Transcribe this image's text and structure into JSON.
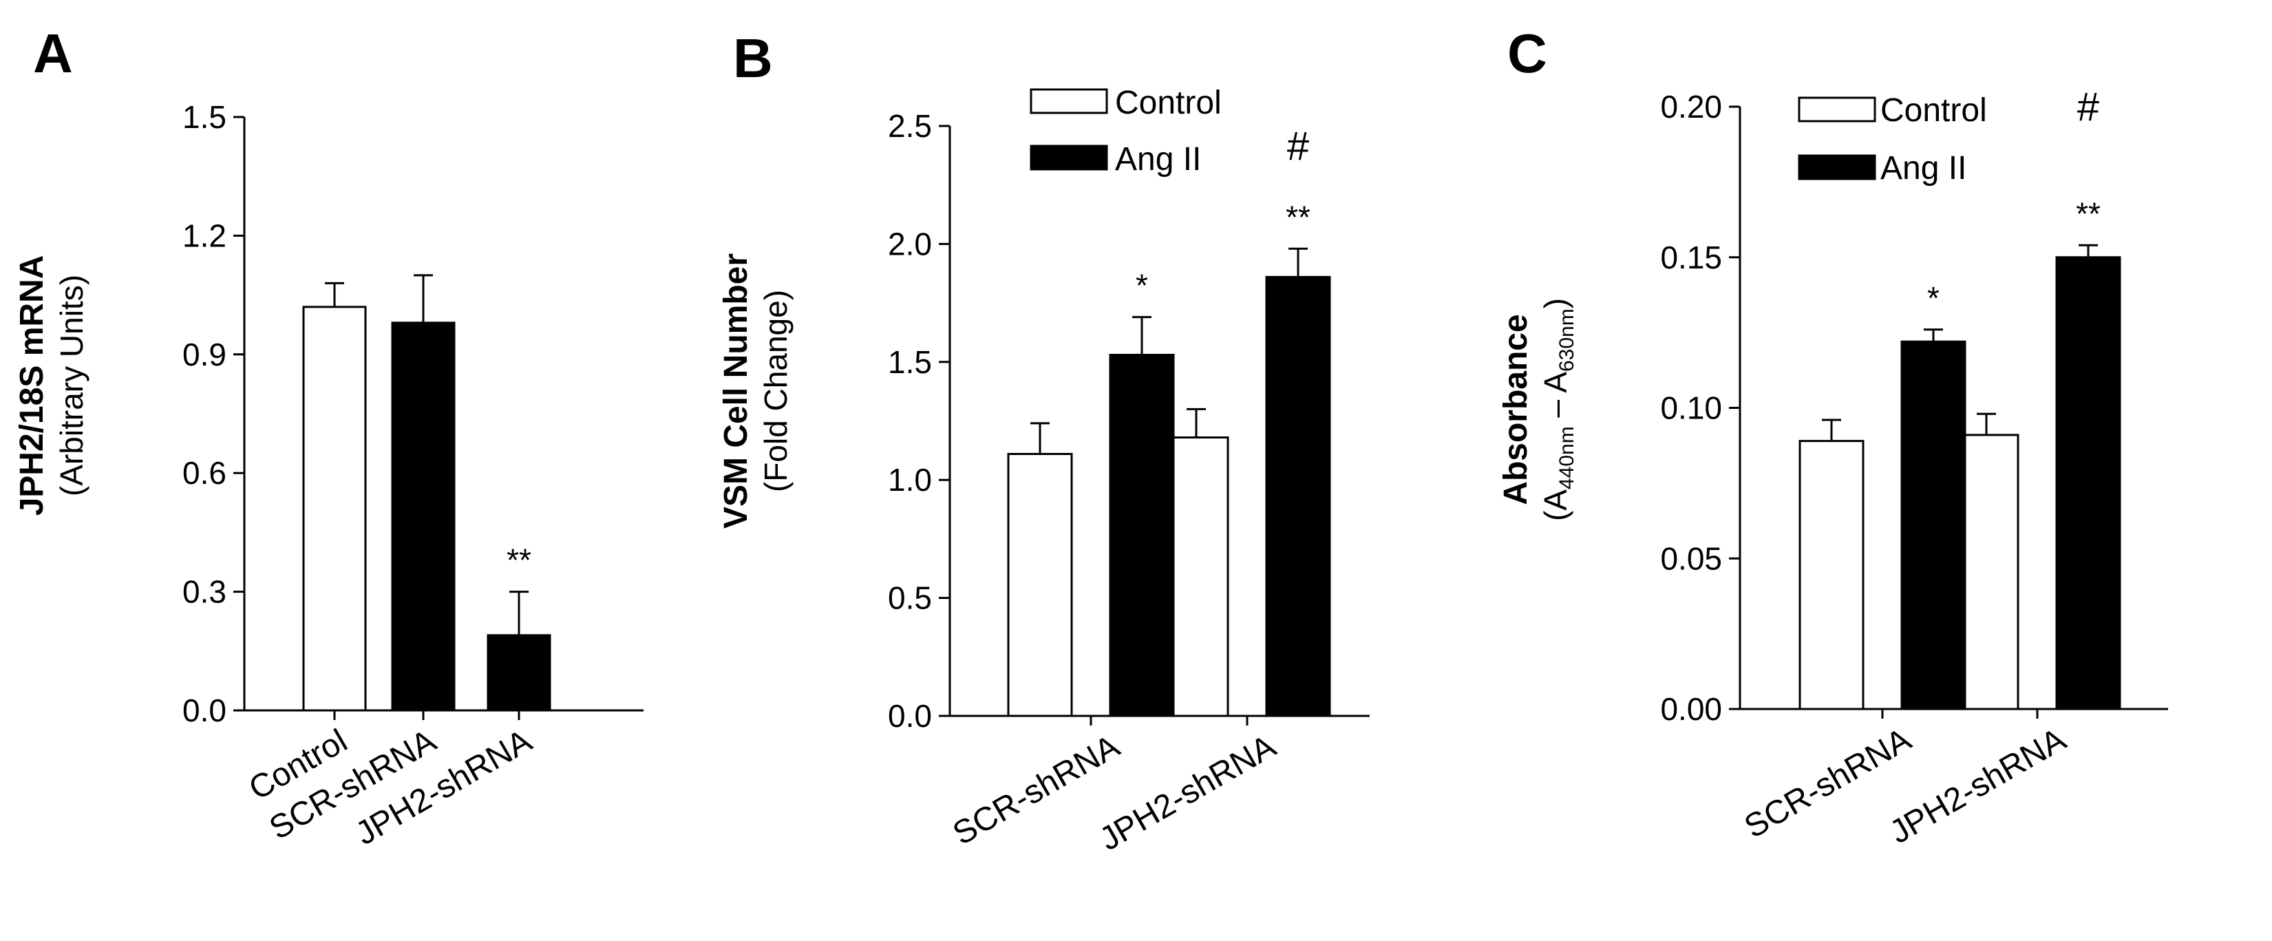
{
  "chart_data": [
    {
      "type": "bar",
      "panel_letter": "A",
      "ylabel": "JPH2/18S mRNA",
      "ylabel_sub": "(Arbitrary Units)",
      "ylim": [
        0,
        1.5
      ],
      "yticks": [
        "0.0",
        "0.3",
        "0.6",
        "0.9",
        "1.2",
        "1.5"
      ],
      "categories": [
        "Control",
        "SCR-shRNA",
        "JPH2-shRNA"
      ],
      "values": [
        1.02,
        0.98,
        0.19
      ],
      "errors": [
        0.06,
        0.12,
        0.11
      ],
      "bar_colors": [
        "#ffffff",
        "#000000",
        "#000000"
      ],
      "significance": [
        "",
        "",
        "**"
      ]
    },
    {
      "type": "bar",
      "panel_letter": "B",
      "ylabel": "VSM Cell Number",
      "ylabel_sub": "(Fold Change)",
      "ylim": [
        0,
        2.5
      ],
      "yticks": [
        "0.0",
        "0.5",
        "1.0",
        "1.5",
        "2.0",
        "2.5"
      ],
      "categories": [
        "SCR-shRNA",
        "JPH2-shRNA"
      ],
      "legend_position": "top-left",
      "series": [
        {
          "name": "Control",
          "color": "#ffffff",
          "values": [
            1.11,
            1.18
          ],
          "errors": [
            0.13,
            0.12
          ],
          "significance": [
            "",
            ""
          ],
          "hash": [
            "",
            ""
          ]
        },
        {
          "name": "Ang II",
          "color": "#000000",
          "values": [
            1.53,
            1.86
          ],
          "errors": [
            0.16,
            0.12
          ],
          "significance": [
            "*",
            "**"
          ],
          "hash": [
            "",
            "#"
          ]
        }
      ]
    },
    {
      "type": "bar",
      "panel_letter": "C",
      "ylabel": "Absorbance",
      "ylabel_sub_parts": [
        "(A",
        "440nm",
        " – A",
        "630nm",
        ")"
      ],
      "ylim": [
        0,
        0.2
      ],
      "yticks": [
        "0.00",
        "0.05",
        "0.10",
        "0.15",
        "0.20"
      ],
      "categories": [
        "SCR-shRNA",
        "JPH2-shRNA"
      ],
      "legend_position": "top-left",
      "series": [
        {
          "name": "Control",
          "color": "#ffffff",
          "values": [
            0.089,
            0.091
          ],
          "errors": [
            0.007,
            0.007
          ],
          "significance": [
            "",
            ""
          ],
          "hash": [
            "",
            ""
          ]
        },
        {
          "name": "Ang II",
          "color": "#000000",
          "values": [
            0.122,
            0.15
          ],
          "errors": [
            0.004,
            0.004
          ],
          "significance": [
            "*",
            "**"
          ],
          "hash": [
            "",
            "#"
          ]
        }
      ]
    }
  ]
}
